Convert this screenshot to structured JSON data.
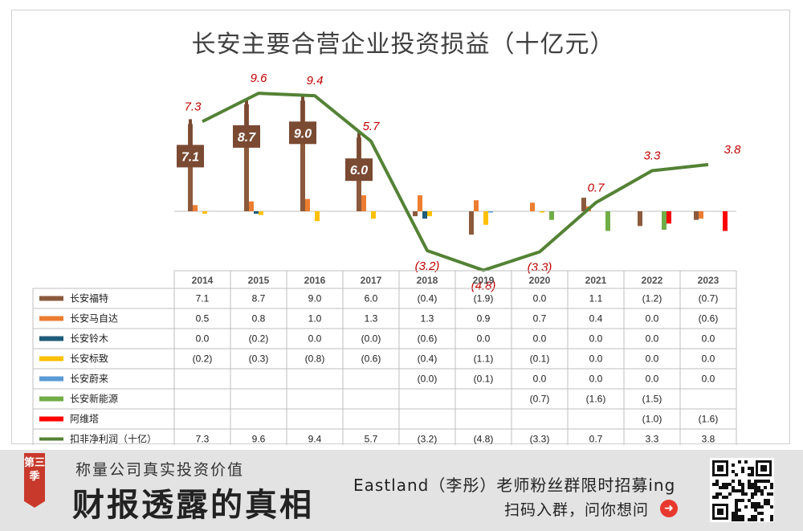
{
  "chart_data": {
    "type": "bar",
    "title": "长安主要合营企业投资损益（十亿元）",
    "categories": [
      "2014",
      "2015",
      "2016",
      "2017",
      "2018",
      "2019",
      "2020",
      "2021",
      "2022",
      "2023"
    ],
    "series": [
      {
        "name": "长安福特",
        "color": "#8b5a3c",
        "values": [
          7.1,
          8.7,
          9.0,
          6.0,
          -0.4,
          -1.9,
          0.0,
          1.1,
          -1.2,
          -0.7
        ],
        "labels": [
          "7.1",
          "8.7",
          "9.0",
          "6.0",
          "(0.4)",
          "(1.9)",
          "0.0",
          "1.1",
          "(1.2)",
          "(0.7)"
        ]
      },
      {
        "name": "长安马自达",
        "color": "#ed7d31",
        "values": [
          0.5,
          0.8,
          1.0,
          1.3,
          1.3,
          0.9,
          0.7,
          0.4,
          0.0,
          -0.6
        ],
        "labels": [
          "0.5",
          "0.8",
          "1.0",
          "1.3",
          "1.3",
          "0.9",
          "0.7",
          "0.4",
          "0.0",
          "(0.6)"
        ]
      },
      {
        "name": "长安铃木",
        "color": "#1f5b7a",
        "values": [
          0.0,
          -0.2,
          0.0,
          -0.0,
          -0.6,
          0.0,
          0.0,
          0.0,
          0.0,
          0.0
        ],
        "labels": [
          "0.0",
          "(0.2)",
          "0.0",
          "(0.0)",
          "(0.6)",
          "0.0",
          "0.0",
          "0.0",
          "0.0",
          "0.0"
        ]
      },
      {
        "name": "长安标致",
        "color": "#ffc000",
        "values": [
          -0.2,
          -0.3,
          -0.8,
          -0.6,
          -0.4,
          -1.1,
          -0.1,
          0.0,
          0.0,
          0.0
        ],
        "labels": [
          "(0.2)",
          "(0.3)",
          "(0.8)",
          "(0.6)",
          "(0.4)",
          "(1.1)",
          "(0.1)",
          "0.0",
          "0.0",
          "0.0"
        ]
      },
      {
        "name": "长安蔚来",
        "color": "#5b9bd5",
        "values": [
          null,
          null,
          null,
          null,
          -0.0,
          -0.1,
          0.0,
          0.0,
          0.0,
          0.0
        ],
        "labels": [
          "",
          "",
          "",
          "",
          "(0.0)",
          "(0.1)",
          "0.0",
          "0.0",
          "0.0",
          "0.0"
        ]
      },
      {
        "name": "长安新能源",
        "color": "#70ad47",
        "values": [
          null,
          null,
          null,
          null,
          null,
          null,
          -0.7,
          -1.6,
          -1.5,
          null
        ],
        "labels": [
          "",
          "",
          "",
          "",
          "",
          "",
          "(0.7)",
          "(1.6)",
          "(1.5)",
          ""
        ]
      },
      {
        "name": "阿维塔",
        "color": "#ff0000",
        "values": [
          null,
          null,
          null,
          null,
          null,
          null,
          null,
          null,
          -1.0,
          -1.6
        ],
        "labels": [
          "",
          "",
          "",
          "",
          "",
          "",
          "",
          "",
          "(1.0)",
          "(1.6)"
        ]
      }
    ],
    "net_series": {
      "name": "扣非净利润（十亿）",
      "color": "#548235",
      "values": [
        7.3,
        9.6,
        9.4,
        5.7,
        -3.2,
        -4.8,
        -3.3,
        0.7,
        3.3,
        3.8
      ],
      "labels": [
        "7.3",
        "9.6",
        "9.4",
        "5.7",
        "(3.2)",
        "(4.8)",
        "(3.3)",
        "0.7",
        "3.3",
        "3.8"
      ]
    },
    "signposts": [
      "7.1",
      "8.7",
      "9.0",
      "6.0"
    ],
    "colors": {
      "title": "#404040",
      "net_label": "#c00000"
    }
  },
  "footer": {
    "season_tag": "第三季",
    "slogan": "称量公司真实投资价值",
    "big_title": "财报透露的真相",
    "promo": "Eastland（李彤）老师粉丝群限时招募ing",
    "scan_text": "扫码入群，问你想问",
    "arrow_icon": "arrow-right-icon",
    "qr_icon": "qr-code-icon"
  }
}
